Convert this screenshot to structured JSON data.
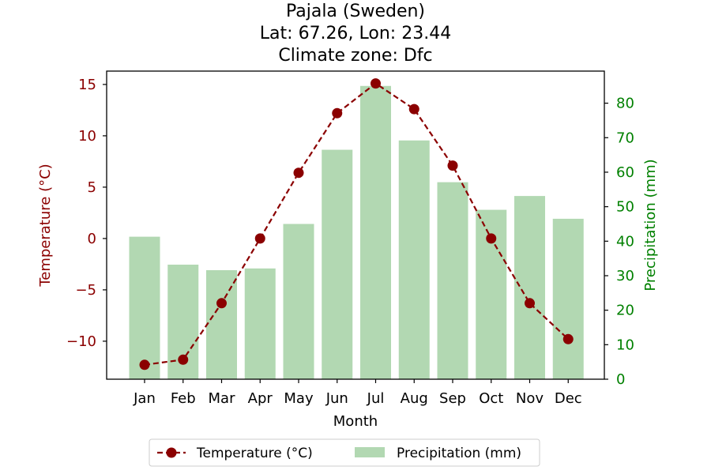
{
  "chart_data": {
    "type": "bar+line",
    "title_lines": [
      "Pajala (Sweden)",
      "Lat: 67.26, Lon: 23.44",
      "Climate zone: Dfc"
    ],
    "xlabel": "Month",
    "categories": [
      "Jan",
      "Feb",
      "Mar",
      "Apr",
      "May",
      "Jun",
      "Jul",
      "Aug",
      "Sep",
      "Oct",
      "Nov",
      "Dec"
    ],
    "temperature": {
      "name": "Temperature (°C)",
      "axis_label": "Temperature (°C)",
      "color": "#8b0000",
      "values": [
        -12.3,
        -11.8,
        -6.3,
        0.0,
        6.4,
        12.2,
        15.1,
        12.6,
        7.1,
        0.0,
        -6.3,
        -9.8
      ],
      "ylim": [
        -13.7,
        16.3
      ],
      "ticks": [
        -10,
        -5,
        0,
        5,
        10,
        15
      ],
      "tick_labels": [
        "−10",
        "−5",
        "0",
        "5",
        "10",
        "15"
      ]
    },
    "precipitation": {
      "name": "Precipitation (mm)",
      "axis_label": "Precipitation (mm)",
      "color": "#b2d8b2",
      "tick_color": "#008000",
      "values": [
        41.3,
        33.2,
        31.6,
        32.1,
        45.0,
        66.5,
        85.0,
        69.2,
        57.1,
        49.1,
        53.1,
        46.5
      ],
      "ylim": [
        0,
        89.3
      ],
      "ticks": [
        0,
        10,
        20,
        30,
        40,
        50,
        60,
        70,
        80
      ],
      "tick_labels": [
        "0",
        "10",
        "20",
        "30",
        "40",
        "50",
        "60",
        "70",
        "80"
      ]
    },
    "legend_position": "bottom-center",
    "grid": false
  }
}
